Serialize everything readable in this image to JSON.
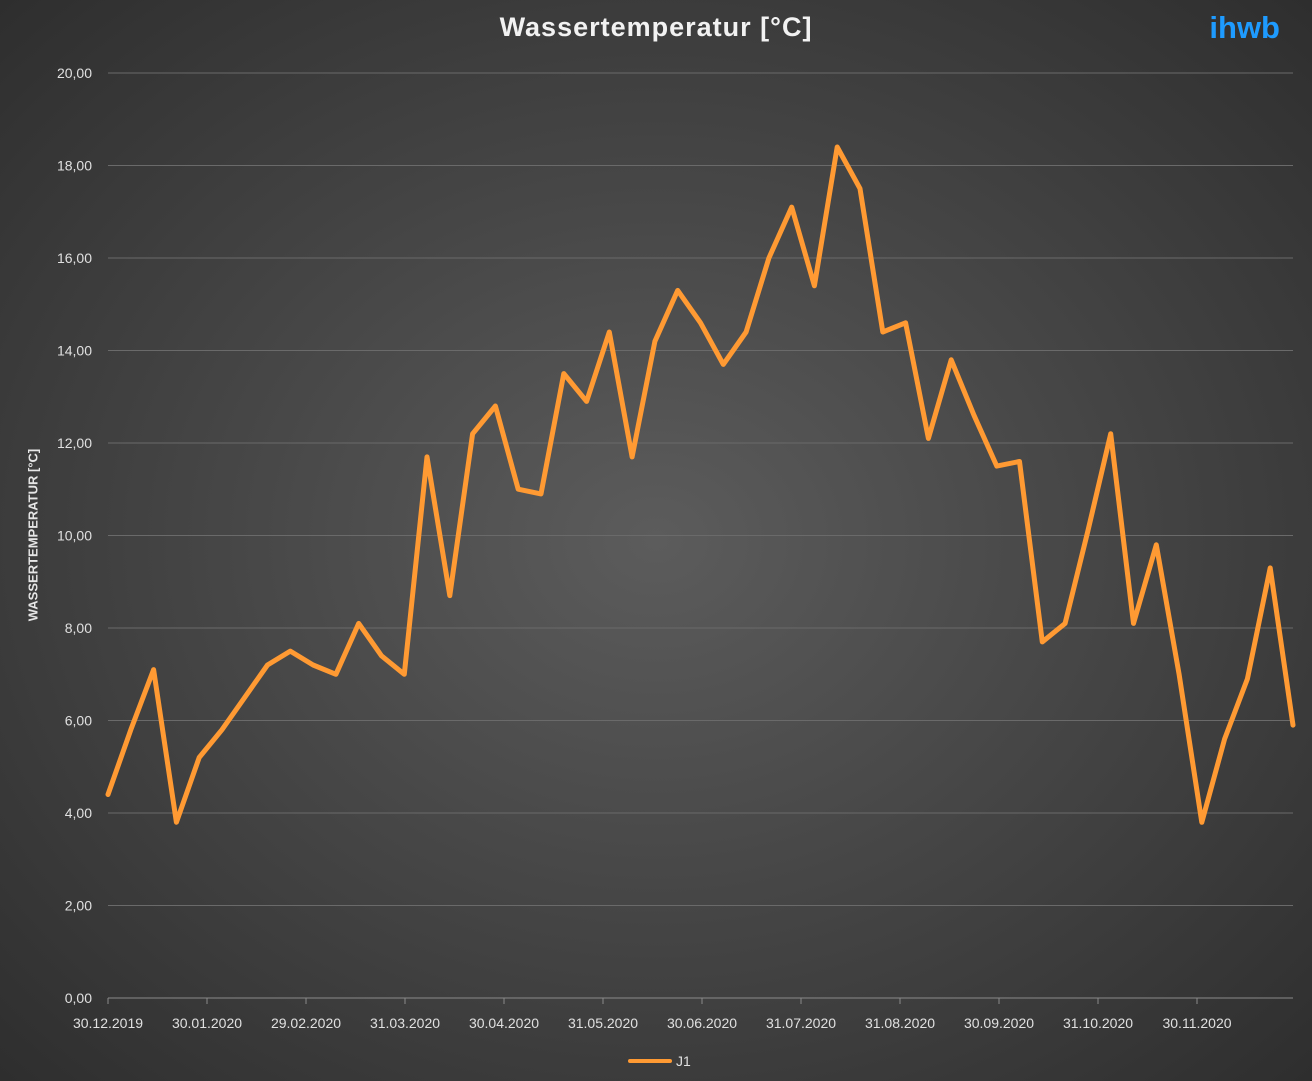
{
  "brand": "ihwb",
  "colors": {
    "line": "#ff9a33",
    "grid": "#6a6a6a",
    "text": "#e0e0e0",
    "brand": "#1e9bff"
  },
  "chart_data": {
    "type": "line",
    "title": "Wassertemperatur [°C]",
    "xlabel": "",
    "ylabel": "WASSERTEMPERATUR [°C]",
    "ylim": [
      0,
      20
    ],
    "yticks": [
      "0,00",
      "2,00",
      "4,00",
      "6,00",
      "8,00",
      "10,00",
      "12,00",
      "14,00",
      "16,00",
      "18,00",
      "20,00"
    ],
    "xticks": [
      "30.12.2019",
      "30.01.2020",
      "29.02.2020",
      "31.03.2020",
      "30.04.2020",
      "31.05.2020",
      "30.06.2020",
      "31.07.2020",
      "31.08.2020",
      "30.09.2020",
      "31.10.2020",
      "30.11.2020"
    ],
    "grid": true,
    "legend_position": "bottom",
    "series": [
      {
        "name": "J1",
        "values": [
          4.4,
          5.8,
          7.1,
          3.8,
          5.2,
          5.8,
          6.5,
          7.2,
          7.5,
          7.2,
          7.0,
          8.1,
          7.4,
          7.0,
          11.7,
          8.7,
          12.2,
          12.8,
          11.0,
          10.9,
          13.5,
          12.9,
          14.4,
          11.7,
          14.2,
          15.3,
          14.6,
          13.7,
          14.4,
          16.0,
          17.1,
          15.4,
          18.4,
          17.5,
          14.4,
          14.6,
          12.1,
          13.8,
          12.6,
          11.5,
          11.6,
          7.7,
          8.1,
          10.1,
          12.2,
          8.1,
          9.8,
          7.0,
          3.8,
          5.6,
          6.9,
          9.3,
          5.9
        ]
      }
    ]
  }
}
